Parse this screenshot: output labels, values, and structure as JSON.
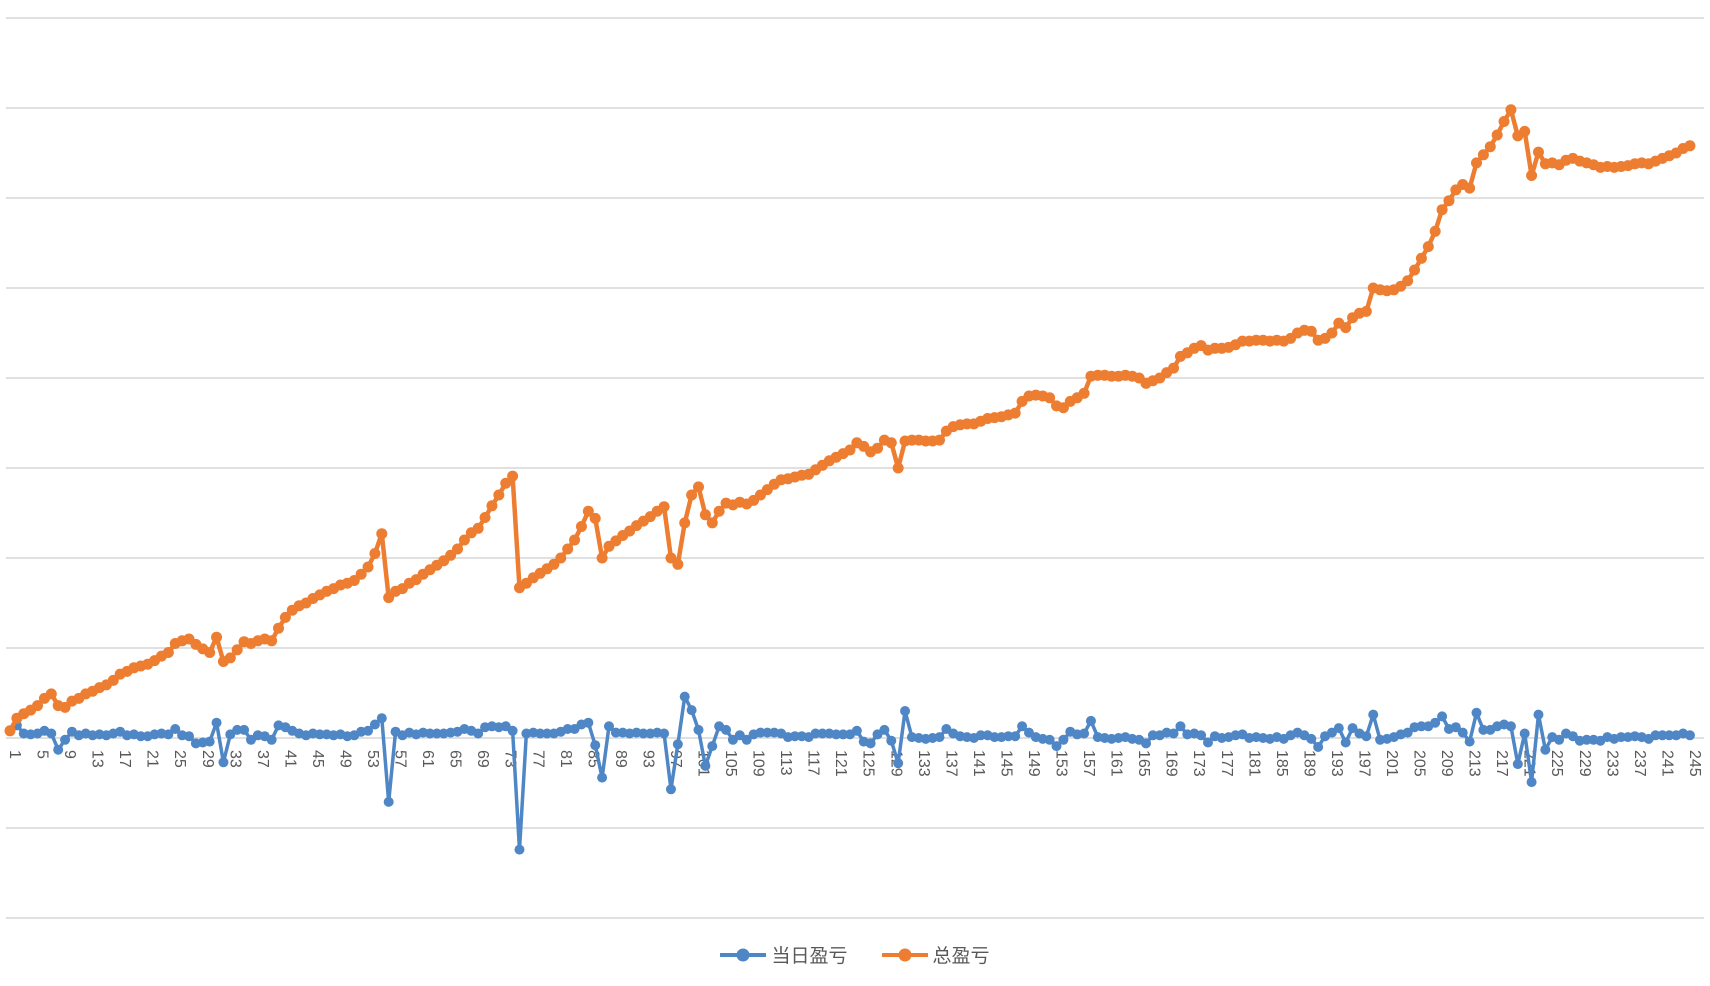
{
  "chart_data": {
    "type": "line",
    "title": "",
    "xlabel": "",
    "ylabel": "",
    "x": {
      "start": 1,
      "step": 1,
      "count": 245,
      "tick_interval": 4,
      "tick_labels": [
        "1",
        "5",
        "9",
        "13",
        "17",
        "21",
        "25",
        "29",
        "33",
        "37",
        "41",
        "45",
        "49",
        "53",
        "57",
        "61",
        "65",
        "69",
        "73",
        "77",
        "81",
        "85",
        "89",
        "93",
        "97",
        "101",
        "105",
        "109",
        "113",
        "117",
        "121",
        "125",
        "129",
        "133",
        "137",
        "141",
        "145",
        "149",
        "153",
        "157",
        "161",
        "165",
        "169",
        "173",
        "177",
        "181",
        "185",
        "189",
        "193",
        "197",
        "201",
        "205",
        "209",
        "213",
        "217",
        "221",
        "225",
        "229",
        "233",
        "237",
        "241",
        "245"
      ]
    },
    "y_axis": {
      "labels_visible": false,
      "unit": "gridline-units (no y-axis tick labels are visible in the image; 1 unit = one gridline spacing)",
      "gridlines_at": [
        -2,
        -1,
        0,
        1,
        2,
        3,
        4,
        5,
        6,
        7,
        8
      ],
      "zero_at_category_axis": 0
    },
    "grid": true,
    "legend_position": "bottom",
    "series": [
      {
        "name": "当日盈亏",
        "color": "#4E86C6",
        "values": [
          0.08,
          0.14,
          0.05,
          0.04,
          0.05,
          0.08,
          0.05,
          -0.13,
          -0.02,
          0.07,
          0.03,
          0.05,
          0.03,
          0.04,
          0.03,
          0.05,
          0.07,
          0.03,
          0.04,
          0.02,
          0.02,
          0.04,
          0.05,
          0.04,
          0.1,
          0.03,
          0.02,
          -0.06,
          -0.05,
          -0.04,
          0.17,
          -0.27,
          0.04,
          0.09,
          0.09,
          -0.02,
          0.03,
          0.02,
          -0.02,
          0.14,
          0.12,
          0.08,
          0.05,
          0.03,
          0.05,
          0.04,
          0.04,
          0.03,
          0.04,
          0.02,
          0.03,
          0.07,
          0.08,
          0.15,
          0.22,
          -0.71,
          0.07,
          0.03,
          0.06,
          0.04,
          0.06,
          0.05,
          0.05,
          0.05,
          0.06,
          0.07,
          0.1,
          0.08,
          0.05,
          0.12,
          0.13,
          0.12,
          0.13,
          0.08,
          -1.24,
          0.05,
          0.06,
          0.05,
          0.05,
          0.05,
          0.07,
          0.1,
          0.1,
          0.15,
          0.17,
          -0.08,
          -0.44,
          0.13,
          0.06,
          0.06,
          0.05,
          0.06,
          0.05,
          0.05,
          0.06,
          0.05,
          -0.57,
          -0.07,
          0.46,
          0.31,
          0.09,
          -0.31,
          -0.09,
          0.13,
          0.09,
          -0.02,
          0.03,
          -0.02,
          0.04,
          0.06,
          0.06,
          0.06,
          0.05,
          0.01,
          0.02,
          0.02,
          0.01,
          0.05,
          0.05,
          0.05,
          0.04,
          0.04,
          0.04,
          0.08,
          -0.04,
          -0.06,
          0.04,
          0.09,
          -0.03,
          -0.28,
          0.3,
          0.01,
          0.0,
          -0.01,
          0.0,
          0.01,
          0.1,
          0.05,
          0.02,
          0.01,
          0.0,
          0.03,
          0.03,
          0.01,
          0.01,
          0.02,
          0.02,
          0.13,
          0.06,
          0.01,
          -0.01,
          -0.02,
          -0.09,
          -0.02,
          0.07,
          0.04,
          0.05,
          0.19,
          0.01,
          0.0,
          -0.01,
          0.0,
          0.01,
          -0.01,
          -0.02,
          -0.06,
          0.03,
          0.03,
          0.06,
          0.05,
          0.13,
          0.04,
          0.05,
          0.03,
          -0.05,
          0.02,
          0.0,
          0.01,
          0.03,
          0.04,
          0.0,
          0.01,
          0.0,
          -0.01,
          0.01,
          -0.01,
          0.03,
          0.06,
          0.03,
          -0.01,
          -0.1,
          0.02,
          0.06,
          0.11,
          -0.05,
          0.11,
          0.05,
          0.02,
          0.26,
          -0.02,
          -0.01,
          0.01,
          0.04,
          0.06,
          0.12,
          0.13,
          0.13,
          0.17,
          0.24,
          0.1,
          0.12,
          0.06,
          -0.04,
          0.28,
          0.09,
          0.09,
          0.13,
          0.15,
          0.13,
          -0.29,
          0.05,
          -0.49,
          0.26,
          -0.13,
          0.01,
          -0.02,
          0.05,
          0.02,
          -0.03,
          -0.02,
          -0.02,
          -0.03,
          0.01,
          -0.01,
          0.01,
          0.01,
          0.02,
          0.01,
          -0.01,
          0.03,
          0.03,
          0.03,
          0.03,
          0.05,
          0.03
        ]
      },
      {
        "name": "总盈亏",
        "color": "#ED7D31",
        "values": [
          0.08,
          0.22,
          0.27,
          0.31,
          0.36,
          0.44,
          0.49,
          0.36,
          0.34,
          0.41,
          0.44,
          0.49,
          0.52,
          0.56,
          0.59,
          0.64,
          0.71,
          0.74,
          0.78,
          0.8,
          0.82,
          0.86,
          0.91,
          0.95,
          1.05,
          1.08,
          1.1,
          1.04,
          0.99,
          0.95,
          1.12,
          0.85,
          0.89,
          0.98,
          1.07,
          1.05,
          1.08,
          1.1,
          1.08,
          1.22,
          1.34,
          1.42,
          1.47,
          1.5,
          1.55,
          1.59,
          1.63,
          1.66,
          1.7,
          1.72,
          1.75,
          1.82,
          1.9,
          2.05,
          2.27,
          1.56,
          1.63,
          1.66,
          1.72,
          1.76,
          1.82,
          1.87,
          1.92,
          1.97,
          2.03,
          2.1,
          2.2,
          2.28,
          2.33,
          2.45,
          2.58,
          2.7,
          2.83,
          2.91,
          1.67,
          1.72,
          1.78,
          1.83,
          1.88,
          1.93,
          2.0,
          2.1,
          2.2,
          2.35,
          2.52,
          2.44,
          2.0,
          2.13,
          2.19,
          2.25,
          2.3,
          2.36,
          2.41,
          2.46,
          2.52,
          2.57,
          2.0,
          1.93,
          2.39,
          2.7,
          2.79,
          2.48,
          2.39,
          2.52,
          2.61,
          2.59,
          2.62,
          2.6,
          2.64,
          2.7,
          2.76,
          2.82,
          2.87,
          2.88,
          2.9,
          2.92,
          2.93,
          2.98,
          3.03,
          3.08,
          3.12,
          3.16,
          3.2,
          3.28,
          3.24,
          3.18,
          3.22,
          3.31,
          3.28,
          3.0,
          3.3,
          3.31,
          3.31,
          3.3,
          3.3,
          3.31,
          3.41,
          3.46,
          3.48,
          3.49,
          3.49,
          3.52,
          3.55,
          3.56,
          3.57,
          3.59,
          3.61,
          3.74,
          3.8,
          3.81,
          3.8,
          3.78,
          3.69,
          3.67,
          3.74,
          3.78,
          3.83,
          4.02,
          4.03,
          4.03,
          4.02,
          4.02,
          4.03,
          4.02,
          4.0,
          3.94,
          3.97,
          4.0,
          4.06,
          4.11,
          4.24,
          4.28,
          4.33,
          4.36,
          4.31,
          4.33,
          4.33,
          4.34,
          4.37,
          4.41,
          4.41,
          4.42,
          4.42,
          4.41,
          4.42,
          4.41,
          4.44,
          4.5,
          4.53,
          4.52,
          4.42,
          4.44,
          4.5,
          4.61,
          4.56,
          4.67,
          4.72,
          4.74,
          5.0,
          4.98,
          4.97,
          4.98,
          5.02,
          5.08,
          5.2,
          5.33,
          5.46,
          5.63,
          5.87,
          5.97,
          6.09,
          6.15,
          6.11,
          6.39,
          6.48,
          6.57,
          6.7,
          6.85,
          6.98,
          6.69,
          6.74,
          6.25,
          6.51,
          6.38,
          6.39,
          6.37,
          6.42,
          6.44,
          6.41,
          6.39,
          6.37,
          6.34,
          6.35,
          6.34,
          6.35,
          6.36,
          6.38,
          6.39,
          6.38,
          6.41,
          6.44,
          6.47,
          6.5,
          6.55,
          6.58
        ]
      }
    ]
  },
  "legend": {
    "daily_label": "当日盈亏",
    "total_label": "总盈亏"
  },
  "colors": {
    "daily": "#4E86C6",
    "total": "#ED7D31",
    "gridline": "#D6D6D6",
    "axis_text": "#595959",
    "background": "#FFFFFF"
  }
}
